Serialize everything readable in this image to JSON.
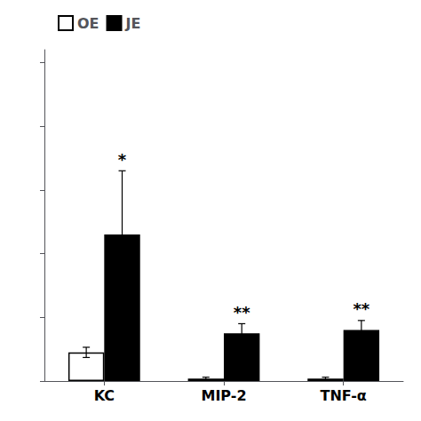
{
  "chart_data": {
    "type": "bar",
    "categories": [
      "KC",
      "MIP-2",
      "TNF-α"
    ],
    "series": [
      {
        "name": "OE",
        "color": "white",
        "values": [
          0.045,
          0.004,
          0.004
        ],
        "errors": [
          0.008,
          0.002,
          0.002
        ]
      },
      {
        "name": "JE",
        "color": "black",
        "values": [
          0.23,
          0.075,
          0.08
        ],
        "errors": [
          0.1,
          0.015,
          0.015
        ],
        "annotations": [
          "*",
          "**",
          "**"
        ]
      }
    ],
    "ylim": [
      0,
      0.52
    ],
    "yticks": [
      0,
      0.1,
      0.2,
      0.3,
      0.4,
      0.5
    ],
    "tick_labels": "x",
    "grid": false,
    "legend": "upper left"
  }
}
